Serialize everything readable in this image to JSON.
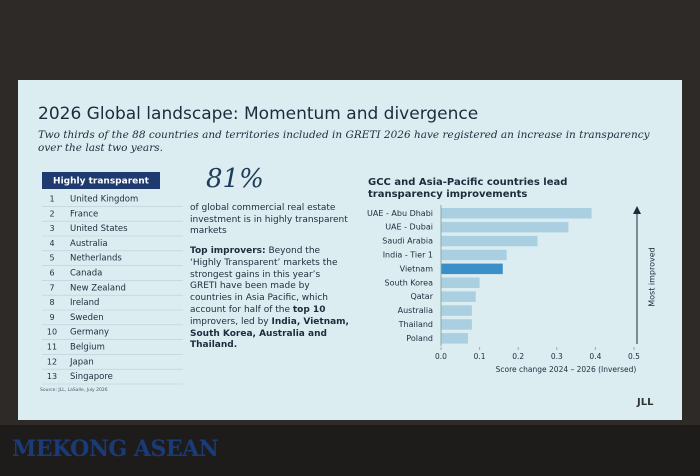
{
  "slide": {
    "title": "2026 Global landscape: Momentum and divergence",
    "subtitle": "Two thirds of the 88 countries and territories included in GRETI 2026 have registered an increase in transparency over the last two years.",
    "table": {
      "header": "Highly transparent",
      "rows": [
        [
          1,
          "United Kingdom"
        ],
        [
          2,
          "France"
        ],
        [
          3,
          "United States"
        ],
        [
          4,
          "Australia"
        ],
        [
          5,
          "Netherlands"
        ],
        [
          6,
          "Canada"
        ],
        [
          7,
          "New Zealand"
        ],
        [
          8,
          "Ireland"
        ],
        [
          9,
          "Sweden"
        ],
        [
          10,
          "Germany"
        ],
        [
          11,
          "Belgium"
        ],
        [
          12,
          "Japan"
        ],
        [
          13,
          "Singapore"
        ]
      ]
    },
    "stat": "81%",
    "stat_text": "of global commercial real estate investment is in highly transparent markets",
    "improvers": [
      {
        "text": "Top improvers:",
        "bold": true
      },
      {
        "text": " Beyond the ‘Highly Transparent’ markets the strongest gains in this year’s GRETI have been made by countries in Asia Pacific, which account for half of the ",
        "bold": false
      },
      {
        "text": "top 10",
        "bold": true
      },
      {
        "text": " improvers, led by ",
        "bold": false
      },
      {
        "text": "India, Vietnam, South Korea, Australia and Thailand.",
        "bold": true
      }
    ],
    "source": "Source: JLL, LaSalle, July 2026",
    "logo": "JLL"
  },
  "watermark": "MEKONG ASEAN",
  "chart_data": {
    "type": "hbar",
    "title": "GCC and Asia-Pacific countries lead transparency improvements",
    "categories": [
      "UAE - Abu Dhabi",
      "UAE - Dubai",
      "Saudi Arabia",
      "India - Tier 1",
      "Vietnam",
      "South Korea",
      "Qatar",
      "Australia",
      "Thailand",
      "Poland"
    ],
    "values": [
      0.39,
      0.33,
      0.25,
      0.17,
      0.16,
      0.1,
      0.09,
      0.08,
      0.08,
      0.07
    ],
    "colors": [
      "#a9cfe0",
      "#a9cfe0",
      "#a9cfe0",
      "#a9cfe0",
      "#3a8fc8",
      "#a9cfe0",
      "#a9cfe0",
      "#a9cfe0",
      "#a9cfe0",
      "#a9cfe0"
    ],
    "xlim": [
      0,
      0.5
    ],
    "xticks": [
      {
        "value": 0,
        "label": "0.0"
      },
      0.1,
      0.2,
      0.3,
      0.4,
      0.5
    ],
    "xlabel": "Score change 2024 – 2026 (Inversed)",
    "arrow_label": "Most improved"
  }
}
